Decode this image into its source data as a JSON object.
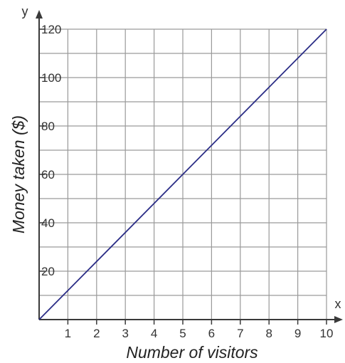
{
  "chart_data": {
    "type": "line",
    "xlabel": "Number of visitors",
    "ylabel": "Money taken ($)",
    "x_axis_letter": "x",
    "y_axis_letter": "y",
    "xlim": [
      0,
      10
    ],
    "ylim": [
      0,
      120
    ],
    "x_ticks": [
      "1",
      "2",
      "3",
      "4",
      "5",
      "6",
      "7",
      "8",
      "9",
      "10"
    ],
    "y_ticks": [
      "20",
      "40",
      "60",
      "80",
      "100",
      "120"
    ],
    "grid": true,
    "series": [
      {
        "x": [
          0,
          10
        ],
        "y": [
          0,
          120
        ],
        "color": "#2b2d86"
      }
    ]
  }
}
